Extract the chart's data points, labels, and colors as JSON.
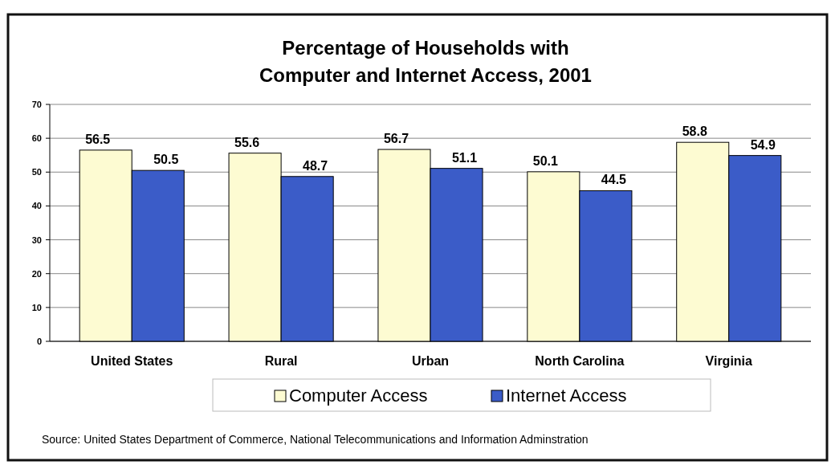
{
  "chart_data": {
    "type": "bar",
    "title": "Percentage of Households with\nComputer and Internet Access, 2001",
    "categories": [
      "United States",
      "Rural",
      "Urban",
      "North Carolina",
      "Virginia"
    ],
    "series": [
      {
        "name": "Computer Access",
        "color": "#fdfbd2",
        "values": [
          56.5,
          55.6,
          56.7,
          50.1,
          58.8
        ]
      },
      {
        "name": "Internet Access",
        "color": "#3b5cc8",
        "values": [
          50.5,
          48.7,
          51.1,
          44.5,
          54.9
        ]
      }
    ],
    "ylim": [
      0,
      70
    ],
    "yticks": [
      0,
      10,
      20,
      30,
      40,
      50,
      60,
      70
    ],
    "grid": "y",
    "legend": "bottom",
    "data_labels": true,
    "annotations": [
      "Source: United States Department of Commerce, National Telecommunications and Information Adminstration"
    ]
  }
}
